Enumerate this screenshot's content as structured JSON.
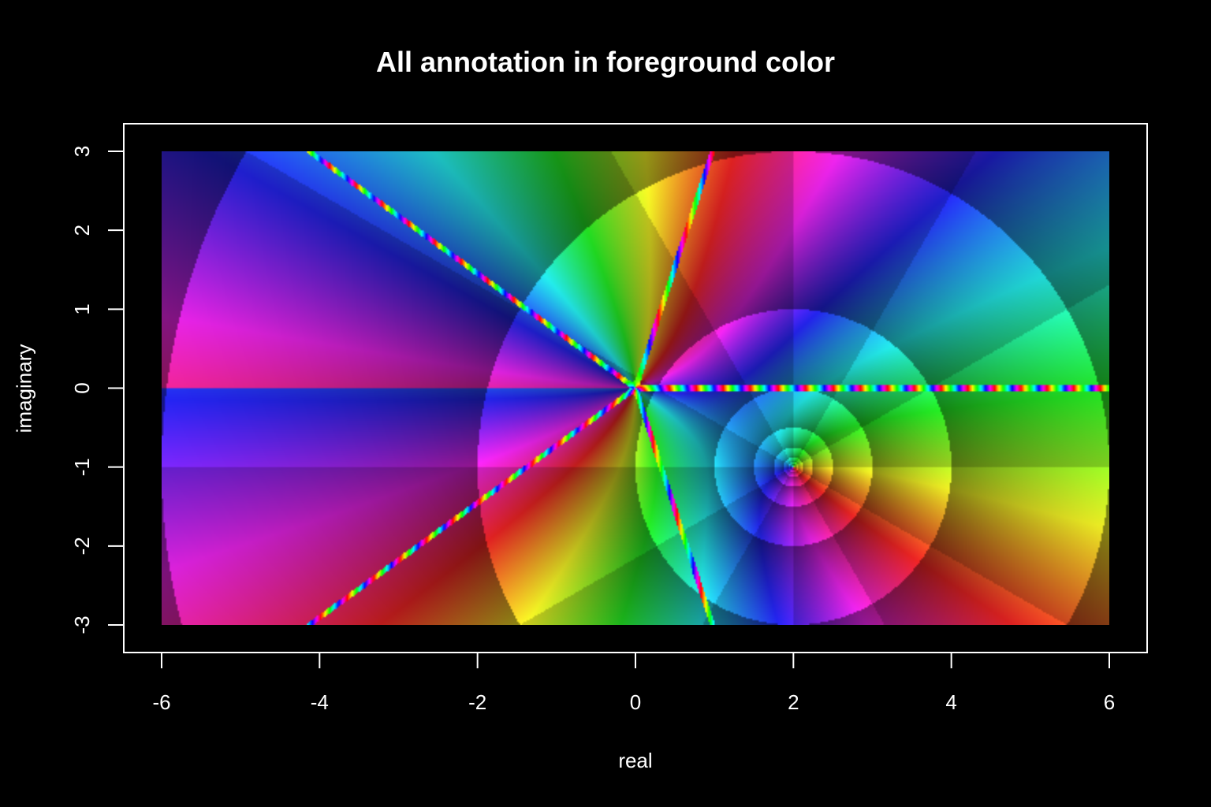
{
  "chart_data": {
    "type": "heatmap",
    "title": "All annotation in foreground color",
    "xlabel": "real",
    "ylabel": "imaginary",
    "xlim": [
      -6,
      6
    ],
    "ylim": [
      -3,
      3
    ],
    "x_ticks": [
      -6,
      -4,
      -2,
      0,
      2,
      4,
      6
    ],
    "x_tick_labels": [
      "-6",
      "-4",
      "-2",
      "0",
      "2",
      "4",
      "6"
    ],
    "y_ticks": [
      -3,
      -2,
      -1,
      0,
      1,
      2,
      3
    ],
    "y_tick_labels": [
      "-3",
      "-2",
      "-1",
      "0",
      "1",
      "2",
      "3"
    ],
    "grid": false,
    "colors": {
      "background": "#000000",
      "foreground": "#ffffff"
    }
  }
}
